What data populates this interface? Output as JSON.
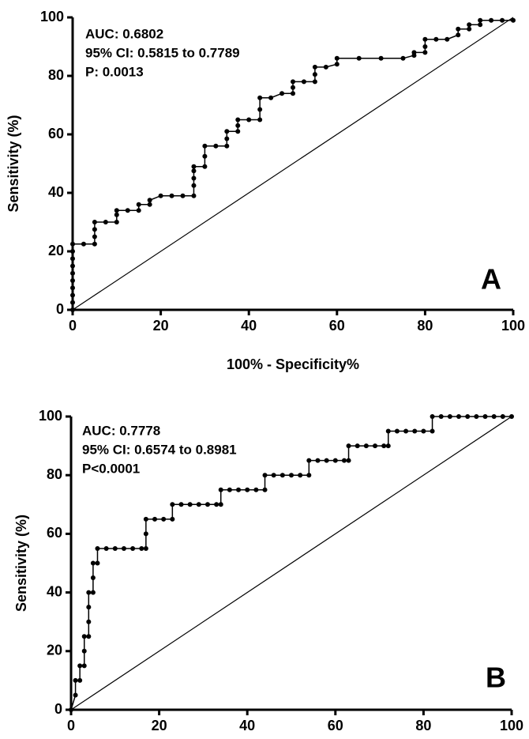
{
  "chart_data": [
    {
      "type": "line",
      "panel_label": "A",
      "annotations": [
        "AUC: 0.6802",
        "95% CI: 0.5815 to 0.7789",
        "P: 0.0013"
      ],
      "x_label": "100% - Specificity%",
      "y_label": "Sensitivity (%)",
      "xlim": [
        0,
        100
      ],
      "ylim": [
        0,
        100
      ],
      "xticks": [
        0,
        20,
        40,
        60,
        80,
        100
      ],
      "yticks": [
        0,
        20,
        40,
        60,
        80,
        100
      ],
      "color": "#000000",
      "reference_line": true,
      "x": [
        0,
        0,
        0,
        0,
        0,
        0,
        0,
        0,
        0,
        0,
        2.5,
        5,
        5,
        5,
        5,
        7.5,
        10,
        10,
        10,
        12.5,
        15,
        15,
        17.5,
        17.5,
        20,
        22.5,
        25,
        27.5,
        27.5,
        27.5,
        27.5,
        27.5,
        30,
        30,
        30,
        32.5,
        35,
        35,
        35,
        37.5,
        37.5,
        37.5,
        40,
        42.5,
        42.5,
        42.5,
        45,
        47.5,
        50,
        50,
        50,
        52.5,
        55,
        55,
        55,
        57.5,
        60,
        60,
        65,
        70,
        75,
        77.5,
        77.5,
        80,
        80,
        80,
        82.5,
        85,
        87.5,
        87.5,
        90,
        90,
        92.5,
        92.5,
        95,
        97.5,
        100
      ],
      "values": [
        0,
        2.5,
        5,
        7.5,
        10,
        12.5,
        15,
        17.5,
        20,
        22.5,
        22.5,
        22.5,
        25,
        27.5,
        30,
        30,
        30,
        32.5,
        34,
        34,
        34,
        36,
        36,
        37.5,
        39,
        39,
        39,
        39,
        42.5,
        45,
        47.5,
        49,
        49,
        52.5,
        56,
        56,
        56,
        58.5,
        61,
        61,
        63,
        65,
        65,
        65,
        68.5,
        72.5,
        72.5,
        74,
        74,
        76,
        78,
        78,
        78,
        80.5,
        83,
        83,
        84,
        86,
        86,
        86,
        86,
        87,
        88,
        88,
        90,
        92.5,
        92.5,
        92.5,
        94,
        96,
        96,
        97.5,
        97.5,
        99,
        99,
        99,
        99
      ]
    },
    {
      "type": "line",
      "panel_label": "B",
      "annotations": [
        "AUC: 0.7778",
        "95% CI: 0.6574 to 0.8981",
        "P<0.0001"
      ],
      "y_label": "Sensitivity (%)",
      "xlim": [
        0,
        100
      ],
      "ylim": [
        0,
        100
      ],
      "xticks": [
        0,
        20,
        40,
        60,
        80,
        100
      ],
      "yticks": [
        0,
        20,
        40,
        60,
        80,
        100
      ],
      "color": "#000000",
      "reference_line": true,
      "x": [
        0,
        1,
        1,
        2,
        2,
        3,
        3,
        3,
        4,
        4,
        4,
        4,
        5,
        5,
        5,
        6,
        6,
        8,
        10,
        12,
        14,
        16,
        17,
        17,
        17,
        19,
        21,
        23,
        23,
        25,
        27,
        29,
        31,
        33,
        34,
        34,
        36,
        38,
        40,
        42,
        44,
        44,
        46,
        48,
        50,
        52,
        54,
        54,
        56,
        58,
        60,
        62,
        63,
        63,
        65,
        67,
        69,
        71,
        72,
        72,
        74,
        76,
        78,
        80,
        82,
        82,
        84,
        86,
        88,
        90,
        92,
        94,
        96,
        98,
        100
      ],
      "values": [
        0,
        5,
        10,
        10,
        15,
        15,
        20,
        25,
        25,
        30,
        35,
        40,
        40,
        45,
        50,
        50,
        55,
        55,
        55,
        55,
        55,
        55,
        55,
        60,
        65,
        65,
        65,
        65,
        70,
        70,
        70,
        70,
        70,
        70,
        70,
        75,
        75,
        75,
        75,
        75,
        75,
        80,
        80,
        80,
        80,
        80,
        80,
        85,
        85,
        85,
        85,
        85,
        85,
        90,
        90,
        90,
        90,
        90,
        90,
        95,
        95,
        95,
        95,
        95,
        95,
        100,
        100,
        100,
        100,
        100,
        100,
        100,
        100,
        100,
        100
      ]
    }
  ]
}
